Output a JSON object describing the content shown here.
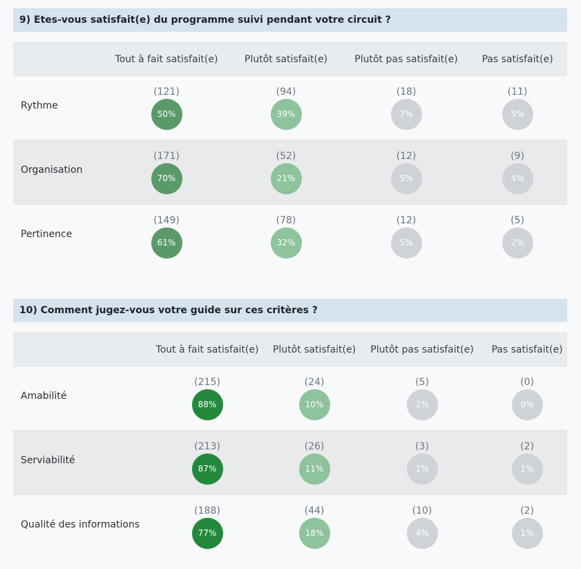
{
  "colors": {
    "title_bg": "#d6e2ee",
    "header_bg": "#e9ecef",
    "strong_green": "#24883c",
    "medium_green": "#5a9a68",
    "light_green": "#8ec39b",
    "grey": "#cfd3d8"
  },
  "columns": [
    "Tout à fait satisfait(e)",
    "Plutôt satisfait(e)",
    "Plutôt pas satisfait(e)",
    "Pas satisfait(e)"
  ],
  "q9": {
    "title": "9) Etes-vous satisfait(e) du programme suivi pendant votre circuit ?",
    "rows": [
      {
        "label": "Rythme",
        "cells": [
          {
            "count": "(121)",
            "percent": "50%",
            "level": "mid"
          },
          {
            "count": "(94)",
            "percent": "39%",
            "level": "light"
          },
          {
            "count": "(18)",
            "percent": "7%",
            "level": "grey"
          },
          {
            "count": "(11)",
            "percent": "5%",
            "level": "grey"
          }
        ]
      },
      {
        "label": "Organisation",
        "cells": [
          {
            "count": "(171)",
            "percent": "70%",
            "level": "mid"
          },
          {
            "count": "(52)",
            "percent": "21%",
            "level": "light"
          },
          {
            "count": "(12)",
            "percent": "5%",
            "level": "grey"
          },
          {
            "count": "(9)",
            "percent": "4%",
            "level": "grey"
          }
        ]
      },
      {
        "label": "Pertinence",
        "cells": [
          {
            "count": "(149)",
            "percent": "61%",
            "level": "mid"
          },
          {
            "count": "(78)",
            "percent": "32%",
            "level": "light"
          },
          {
            "count": "(12)",
            "percent": "5%",
            "level": "grey"
          },
          {
            "count": "(5)",
            "percent": "2%",
            "level": "grey"
          }
        ]
      }
    ]
  },
  "q10": {
    "title": "10) Comment jugez-vous votre guide sur ces critères ?",
    "rows": [
      {
        "label": "Amabilité",
        "cells": [
          {
            "count": "(215)",
            "percent": "88%",
            "level": "dark"
          },
          {
            "count": "(24)",
            "percent": "10%",
            "level": "light"
          },
          {
            "count": "(5)",
            "percent": "2%",
            "level": "grey"
          },
          {
            "count": "(0)",
            "percent": "0%",
            "level": "grey"
          }
        ]
      },
      {
        "label": "Serviabilité",
        "cells": [
          {
            "count": "(213)",
            "percent": "87%",
            "level": "dark"
          },
          {
            "count": "(26)",
            "percent": "11%",
            "level": "light"
          },
          {
            "count": "(3)",
            "percent": "1%",
            "level": "grey"
          },
          {
            "count": "(2)",
            "percent": "1%",
            "level": "grey"
          }
        ]
      },
      {
        "label": "Qualité des informations",
        "cells": [
          {
            "count": "(188)",
            "percent": "77%",
            "level": "dark"
          },
          {
            "count": "(44)",
            "percent": "18%",
            "level": "light"
          },
          {
            "count": "(10)",
            "percent": "4%",
            "level": "grey"
          },
          {
            "count": "(2)",
            "percent": "1%",
            "level": "grey"
          }
        ]
      }
    ]
  }
}
